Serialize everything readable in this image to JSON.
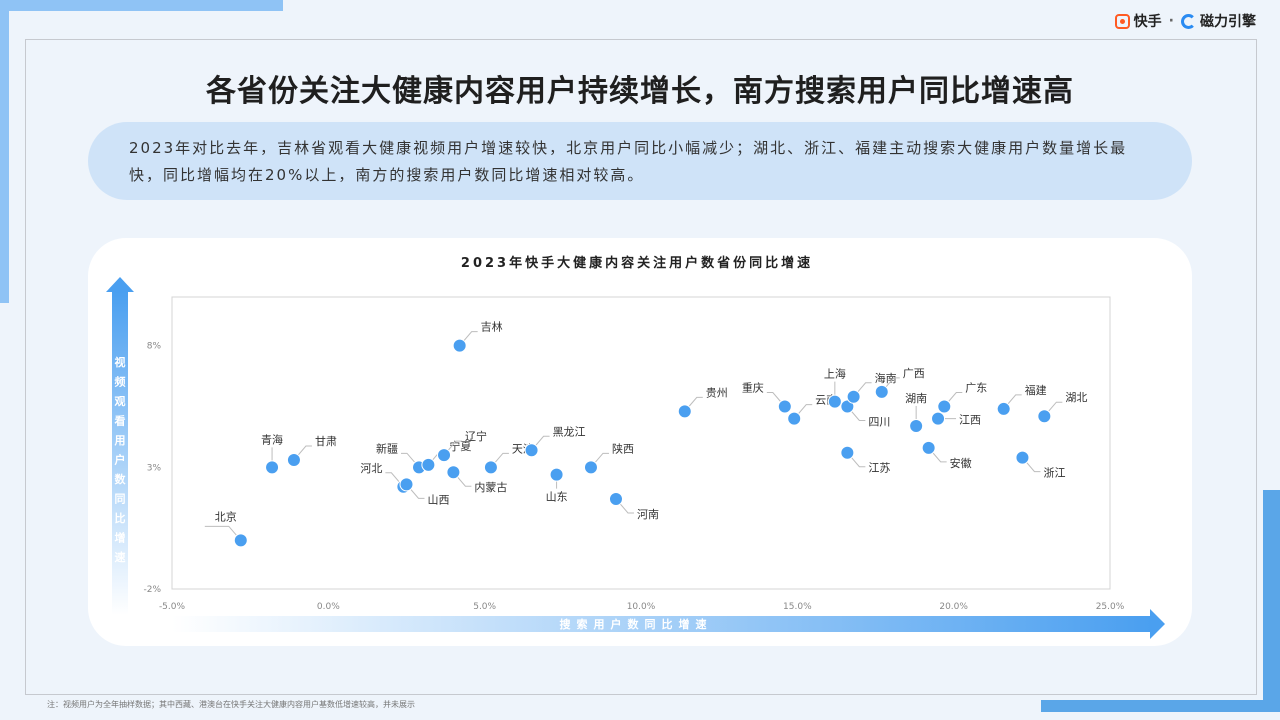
{
  "brand": {
    "kuaishou": "快手",
    "separator": "·",
    "cili": "磁力引擎"
  },
  "title": "各省份关注大健康内容用户持续增长，南方搜索用户同比增速高",
  "summary": "2023年对比去年，吉林省观看大健康视频用户增速较快，北京用户同比小幅减少；湖北、浙江、福建主动搜索大健康用户数量增长最快，同比增幅均在20%以上，南方的搜索用户数同比增速相对较高。",
  "footnote": "注：视频用户为全年抽样数据；其中西藏、港澳台在快手关注大健康内容用户基数低增速较高，并未展示",
  "colors": {
    "point": "#4a9ff0",
    "arrow": "#4a9ff0",
    "accent_band": "#cfe3f8"
  },
  "chart_data": {
    "type": "scatter",
    "title": "2023年快手大健康内容关注用户数省份同比增速",
    "xlabel": "搜索用户数同比增速",
    "ylabel": "视频观看用户数同比增速",
    "xlim": [
      -5,
      25
    ],
    "ylim": [
      -2,
      10
    ],
    "xticks": [
      "-5.0%",
      "0.0%",
      "5.0%",
      "10.0%",
      "15.0%",
      "20.0%",
      "25.0%"
    ],
    "yticks": [
      "8%",
      "3%",
      "-2%"
    ],
    "grid": false,
    "points": [
      {
        "name": "北京",
        "x": -2.8,
        "y": 0.0
      },
      {
        "name": "青海",
        "x": -1.8,
        "y": 3.0
      },
      {
        "name": "甘肃",
        "x": -1.1,
        "y": 3.3
      },
      {
        "name": "河北",
        "x": 2.4,
        "y": 2.2
      },
      {
        "name": "山西",
        "x": 2.5,
        "y": 2.3
      },
      {
        "name": "新疆",
        "x": 2.9,
        "y": 3.0
      },
      {
        "name": "宁夏",
        "x": 3.2,
        "y": 3.1
      },
      {
        "name": "辽宁",
        "x": 3.7,
        "y": 3.5
      },
      {
        "name": "吉林",
        "x": 4.2,
        "y": 8.0
      },
      {
        "name": "内蒙古",
        "x": 4.0,
        "y": 2.8
      },
      {
        "name": "天津",
        "x": 5.2,
        "y": 3.0
      },
      {
        "name": "黑龙江",
        "x": 6.5,
        "y": 3.7
      },
      {
        "name": "山东",
        "x": 7.3,
        "y": 2.7
      },
      {
        "name": "陕西",
        "x": 8.4,
        "y": 3.0
      },
      {
        "name": "河南",
        "x": 9.2,
        "y": 1.7
      },
      {
        "name": "贵州",
        "x": 11.4,
        "y": 5.3
      },
      {
        "name": "重庆",
        "x": 14.6,
        "y": 5.5
      },
      {
        "name": "云南",
        "x": 14.9,
        "y": 5.0
      },
      {
        "name": "上海",
        "x": 16.2,
        "y": 5.7
      },
      {
        "name": "四川",
        "x": 16.6,
        "y": 5.5
      },
      {
        "name": "海南",
        "x": 16.8,
        "y": 5.9
      },
      {
        "name": "江苏",
        "x": 16.6,
        "y": 3.6
      },
      {
        "name": "广西",
        "x": 17.7,
        "y": 6.1
      },
      {
        "name": "湖南",
        "x": 18.8,
        "y": 4.7
      },
      {
        "name": "安徽",
        "x": 19.2,
        "y": 3.8
      },
      {
        "name": "江西",
        "x": 19.5,
        "y": 5.0
      },
      {
        "name": "广东",
        "x": 19.7,
        "y": 5.5
      },
      {
        "name": "福建",
        "x": 21.6,
        "y": 5.4
      },
      {
        "name": "浙江",
        "x": 22.2,
        "y": 3.4
      },
      {
        "name": "湖北",
        "x": 22.9,
        "y": 5.1
      }
    ]
  }
}
